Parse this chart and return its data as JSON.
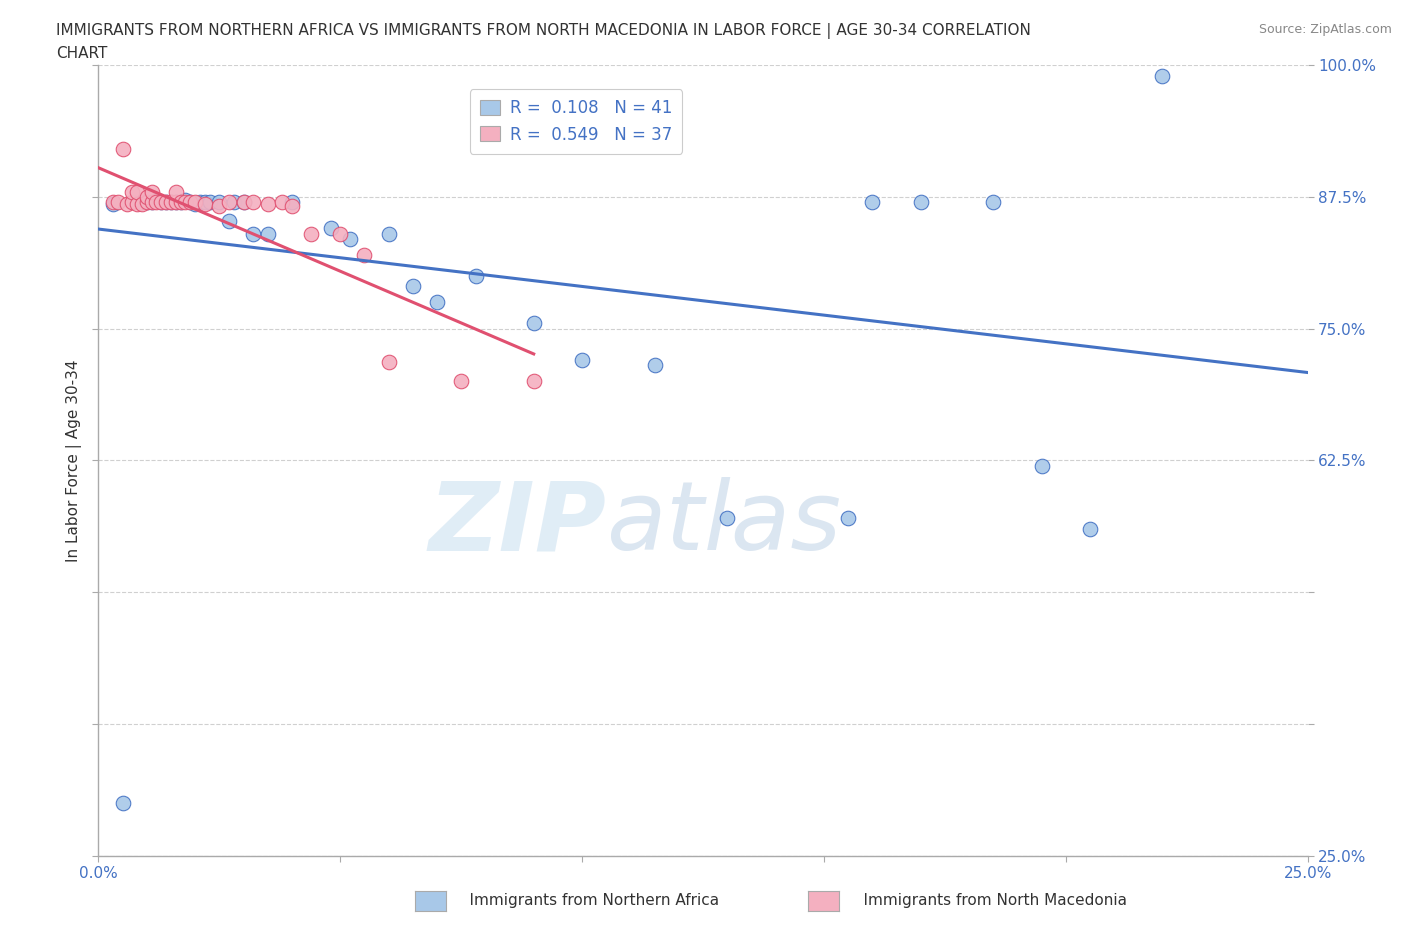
{
  "title_line1": "IMMIGRANTS FROM NORTHERN AFRICA VS IMMIGRANTS FROM NORTH MACEDONIA IN LABOR FORCE | AGE 30-34 CORRELATION",
  "title_line2": "CHART",
  "source": "Source: ZipAtlas.com",
  "ylabel": "In Labor Force | Age 30-34",
  "legend_label_blue": "Immigrants from Northern Africa",
  "legend_label_pink": "Immigrants from North Macedonia",
  "R_blue": 0.108,
  "N_blue": 41,
  "R_pink": 0.549,
  "N_pink": 37,
  "color_blue": "#a8c8e8",
  "color_pink": "#f4b0c0",
  "line_color_blue": "#4472c4",
  "line_color_pink": "#e05070",
  "xlim": [
    0.0,
    0.25
  ],
  "ylim": [
    0.25,
    1.0
  ],
  "watermark_zip": "ZIP",
  "watermark_atlas": "atlas",
  "background_color": "#ffffff",
  "grid_color": "#d0d0d0",
  "blue_x": [
    0.003,
    0.005,
    0.006,
    0.008,
    0.009,
    0.01,
    0.011,
    0.012,
    0.013,
    0.014,
    0.015,
    0.016,
    0.017,
    0.018,
    0.019,
    0.02,
    0.022,
    0.025,
    0.027,
    0.03,
    0.032,
    0.035,
    0.038,
    0.042,
    0.048,
    0.055,
    0.06,
    0.065,
    0.07,
    0.08,
    0.09,
    0.1,
    0.115,
    0.13,
    0.15,
    0.16,
    0.175,
    0.185,
    0.195,
    0.205,
    0.22
  ],
  "blue_y": [
    0.87,
    0.3,
    0.87,
    0.88,
    0.88,
    0.87,
    0.87,
    0.87,
    0.87,
    0.87,
    0.87,
    0.87,
    0.88,
    0.88,
    0.87,
    0.87,
    0.87,
    0.87,
    0.85,
    0.87,
    0.84,
    0.84,
    0.84,
    0.87,
    0.84,
    0.83,
    0.84,
    0.79,
    0.77,
    0.8,
    0.76,
    0.72,
    0.71,
    0.57,
    0.58,
    0.87,
    0.87,
    0.87,
    0.62,
    0.56,
    0.99
  ],
  "pink_x": [
    0.003,
    0.004,
    0.005,
    0.006,
    0.007,
    0.007,
    0.008,
    0.008,
    0.009,
    0.01,
    0.01,
    0.01,
    0.011,
    0.012,
    0.013,
    0.014,
    0.015,
    0.016,
    0.017,
    0.018,
    0.019,
    0.02,
    0.022,
    0.024,
    0.026,
    0.028,
    0.03,
    0.032,
    0.034,
    0.038,
    0.04,
    0.044,
    0.048,
    0.052,
    0.06,
    0.075,
    0.09
  ],
  "pink_y": [
    0.87,
    0.87,
    0.92,
    0.87,
    0.87,
    0.88,
    0.87,
    0.88,
    0.87,
    0.87,
    0.87,
    0.88,
    0.87,
    0.87,
    0.87,
    0.87,
    0.87,
    0.87,
    0.87,
    0.87,
    0.87,
    0.87,
    0.87,
    0.86,
    0.86,
    0.87,
    0.87,
    0.87,
    0.87,
    0.87,
    0.87,
    0.84,
    0.84,
    0.82,
    0.72,
    0.7,
    0.7
  ]
}
